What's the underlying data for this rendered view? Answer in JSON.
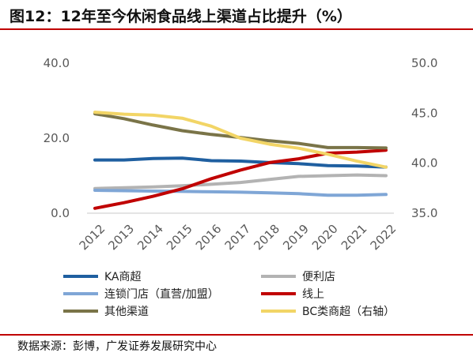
{
  "title": "图12：12年至今休闲食品线上渠道占比提升（%）",
  "source": "数据来源：彭博，广发证券发展研究中心",
  "chart_data": {
    "type": "line",
    "x": [
      "2012",
      "2013",
      "2014",
      "2015",
      "2016",
      "2017",
      "2018",
      "2019",
      "2020",
      "2021",
      "2022"
    ],
    "y_left": {
      "ylim": [
        0,
        40
      ],
      "ticks": [
        "0.0",
        "20.0",
        "40.0"
      ]
    },
    "y_right": {
      "ylim": [
        35,
        50
      ],
      "ticks": [
        "35.0",
        "40.0",
        "45.0",
        "50.0"
      ]
    },
    "grid": false,
    "legend_position": "bottom",
    "series": [
      {
        "name": "KA商超",
        "axis": "left",
        "color": "#1f5fa0",
        "values": [
          14.2,
          14.2,
          14.6,
          14.7,
          14.0,
          13.9,
          13.5,
          13.2,
          12.7,
          12.6,
          12.3
        ]
      },
      {
        "name": "便利店",
        "axis": "left",
        "color": "#b3b3b3",
        "values": [
          6.6,
          6.8,
          7.0,
          7.3,
          7.7,
          8.2,
          9.0,
          9.8,
          10.0,
          10.2,
          10.0
        ]
      },
      {
        "name": "连锁门店（直营/加盟）",
        "axis": "left",
        "color": "#7fa6d6",
        "values": [
          6.1,
          6.0,
          5.9,
          5.8,
          5.7,
          5.6,
          5.4,
          5.2,
          4.8,
          4.8,
          5.0
        ]
      },
      {
        "name": "线上",
        "axis": "left",
        "color": "#c00000",
        "values": [
          1.3,
          2.8,
          4.5,
          6.5,
          9.2,
          11.5,
          13.5,
          14.5,
          16.0,
          16.3,
          16.8
        ]
      },
      {
        "name": "其他渠道",
        "axis": "left",
        "color": "#7a7448",
        "values": [
          26.5,
          25.2,
          23.5,
          22.0,
          21.0,
          20.2,
          19.3,
          18.6,
          17.5,
          17.5,
          17.4
        ]
      },
      {
        "name": "BC类商超（右轴）",
        "axis": "right",
        "color": "#f2d566",
        "values": [
          45.1,
          44.9,
          44.8,
          44.5,
          43.7,
          42.5,
          41.9,
          41.5,
          40.9,
          40.2,
          39.6
        ]
      }
    ]
  }
}
